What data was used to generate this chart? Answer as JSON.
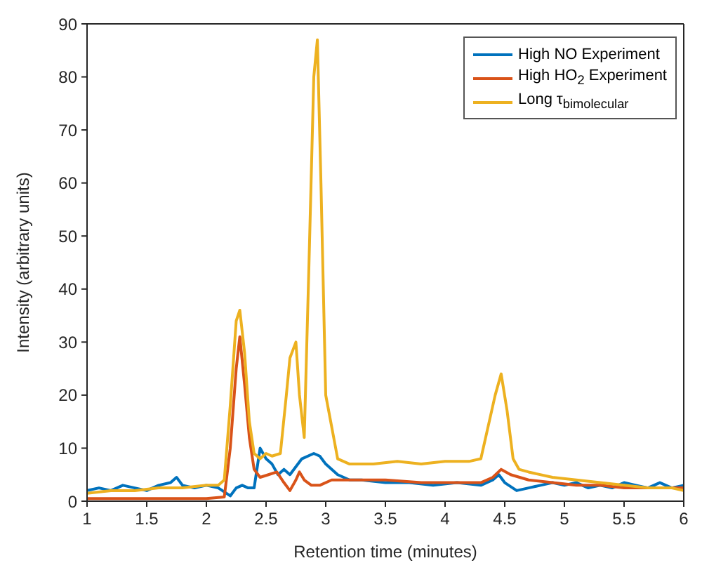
{
  "chart_data": {
    "type": "line",
    "xlabel": "Retention time (minutes)",
    "ylabel": "Intensity (arbitrary units)",
    "xlim": [
      1,
      6
    ],
    "xticks": [
      1,
      1.5,
      2,
      2.5,
      3,
      3.5,
      4,
      4.5,
      5,
      5.5,
      6
    ],
    "ylim": [
      0,
      90
    ],
    "yticks": [
      0,
      10,
      20,
      30,
      40,
      50,
      60,
      70,
      80,
      90
    ],
    "grid": false,
    "legend": "top right",
    "marker": "none",
    "line_style": "solid",
    "series": [
      {
        "name": "High NO Experiment",
        "color": "#0072bd",
        "x": [
          1,
          1.1,
          1.2,
          1.3,
          1.4,
          1.5,
          1.6,
          1.7,
          1.75,
          1.8,
          1.9,
          2,
          2.1,
          2.2,
          2.25,
          2.3,
          2.35,
          2.4,
          2.45,
          2.5,
          2.55,
          2.6,
          2.65,
          2.7,
          2.8,
          2.9,
          2.95,
          3,
          3.1,
          3.2,
          3.3,
          3.5,
          3.7,
          3.9,
          4.1,
          4.3,
          4.4,
          4.45,
          4.5,
          4.6,
          4.7,
          4.8,
          4.9,
          5,
          5.1,
          5.2,
          5.3,
          5.4,
          5.5,
          5.6,
          5.7,
          5.8,
          5.9,
          6
        ],
        "values": [
          2,
          2.5,
          2,
          3,
          2.5,
          2,
          3,
          3.5,
          4.5,
          3,
          2.5,
          3,
          2.5,
          1,
          2.5,
          3,
          2.5,
          2.5,
          10,
          8,
          7,
          5,
          6,
          5,
          8,
          9,
          8.5,
          7,
          5,
          4,
          4,
          3.5,
          3.5,
          3,
          3.5,
          3,
          4,
          5,
          3.5,
          2,
          2.5,
          3,
          3.5,
          3,
          3.5,
          2.5,
          3,
          2.5,
          3.5,
          3,
          2.5,
          3.5,
          2.5,
          3
        ]
      },
      {
        "name": "High HO$_{2}$ Experiment",
        "color": "#d95319",
        "x": [
          1,
          1.5,
          2,
          2.15,
          2.2,
          2.25,
          2.28,
          2.32,
          2.36,
          2.4,
          2.45,
          2.52,
          2.59,
          2.65,
          2.7,
          2.75,
          2.78,
          2.82,
          2.88,
          2.95,
          3.05,
          3.2,
          3.5,
          3.8,
          4.1,
          4.3,
          4.4,
          4.47,
          4.55,
          4.7,
          4.9,
          5.1,
          5.3,
          5.5,
          5.8,
          6
        ],
        "values": [
          0.5,
          0.5,
          0.5,
          0.8,
          10,
          25,
          31,
          22,
          12,
          6,
          4.5,
          5,
          5.5,
          3.5,
          2,
          4,
          5.5,
          4,
          3,
          3,
          4,
          4,
          4,
          3.5,
          3.5,
          3.5,
          4.5,
          6,
          5,
          4,
          3.5,
          3,
          3,
          2.5,
          2.5,
          2.5
        ]
      },
      {
        "name": "Long τ$_{bimolecular}$",
        "color": "#edb120",
        "x": [
          1,
          1.2,
          1.4,
          1.6,
          1.8,
          2,
          2.1,
          2.15,
          2.2,
          2.25,
          2.28,
          2.32,
          2.36,
          2.4,
          2.45,
          2.5,
          2.55,
          2.62,
          2.67,
          2.7,
          2.75,
          2.78,
          2.82,
          2.86,
          2.9,
          2.93,
          2.96,
          3,
          3.05,
          3.1,
          3.2,
          3.4,
          3.6,
          3.8,
          4,
          4.2,
          4.3,
          4.38,
          4.42,
          4.47,
          4.52,
          4.57,
          4.62,
          4.7,
          4.9,
          5.1,
          5.3,
          5.5,
          5.7,
          5.9,
          6
        ],
        "values": [
          1.5,
          2,
          2,
          2.5,
          2.5,
          3,
          3,
          4,
          18,
          34,
          36,
          28,
          15,
          9,
          8,
          9,
          8.5,
          9,
          20,
          27,
          30,
          20,
          12,
          45,
          80,
          87,
          60,
          20,
          14,
          8,
          7,
          7,
          7.5,
          7,
          7.5,
          7.5,
          8,
          16,
          20,
          24,
          17,
          8,
          6,
          5.5,
          4.5,
          4,
          3.5,
          3,
          2.5,
          2.5,
          2
        ]
      }
    ]
  }
}
